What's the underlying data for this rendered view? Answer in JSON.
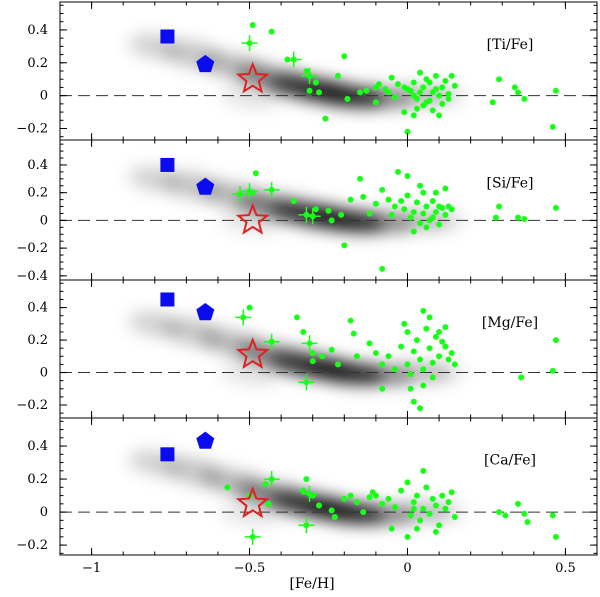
{
  "chart_data": {
    "type": "scatter",
    "xlabel": "[Fe/H]",
    "xlim": [
      -1.1,
      0.6
    ],
    "x_ticks": [
      -1,
      -0.5,
      0,
      0.5
    ],
    "x_tick_labels": [
      "−1",
      "−0.5",
      "0",
      "0.5"
    ],
    "colors": {
      "green": "#19ff19",
      "blue": "#0b0bf0",
      "star_edge": "#dd2222",
      "frame": "#000000"
    },
    "panels": [
      {
        "label": "[Ti/Fe]",
        "ylim": [
          -0.27,
          0.57
        ],
        "y_ticks": [
          -0.2,
          0,
          0.2,
          0.4
        ],
        "y_tick_labels": [
          "−0.2",
          "0",
          "0.2",
          "0.4"
        ],
        "square": {
          "x": -0.76,
          "y": 0.36
        },
        "pentagon": {
          "x": -0.64,
          "y": 0.19
        },
        "star": {
          "x": -0.49,
          "y": 0.1
        },
        "error_points": [
          [
            -0.5,
            0.32
          ],
          [
            -0.36,
            0.22
          ],
          [
            -0.31,
            0.12
          ]
        ],
        "points": [
          [
            -0.49,
            0.43
          ],
          [
            -0.43,
            0.39
          ],
          [
            -0.38,
            0.22
          ],
          [
            -0.32,
            0.15
          ],
          [
            -0.29,
            0.08
          ],
          [
            -0.31,
            0.03
          ],
          [
            -0.28,
            0.02
          ],
          [
            -0.2,
            0.24
          ],
          [
            -0.22,
            0.12
          ],
          [
            -0.19,
            -0.02
          ],
          [
            -0.1,
            0.05
          ],
          [
            -0.09,
            0.07
          ],
          [
            -0.07,
            0.04
          ],
          [
            -0.05,
            0.11
          ],
          [
            -0.03,
            0.07
          ],
          [
            -0.01,
            0.05
          ],
          [
            0.01,
            0.03
          ],
          [
            0.02,
            0.0
          ],
          [
            0.03,
            -0.02
          ],
          [
            0.04,
            0.02
          ],
          [
            0.05,
            0.05
          ],
          [
            0.06,
            -0.04
          ],
          [
            0.07,
            0.08
          ],
          [
            0.08,
            0.02
          ],
          [
            0.09,
            0.12
          ],
          [
            0.1,
            0.0
          ],
          [
            0.11,
            0.05
          ],
          [
            0.12,
            0.09
          ],
          [
            0.13,
            0.01
          ],
          [
            0.14,
            0.12
          ],
          [
            0.15,
            0.06
          ],
          [
            -0.01,
            -0.1
          ],
          [
            0.0,
            -0.22
          ],
          [
            0.02,
            -0.12
          ],
          [
            0.03,
            -0.08
          ],
          [
            0.05,
            -0.06
          ],
          [
            0.07,
            -0.03
          ],
          [
            0.1,
            -0.12
          ],
          [
            0.06,
            0.1
          ],
          [
            0.04,
            0.14
          ],
          [
            -0.04,
            -0.01
          ],
          [
            -0.1,
            -0.04
          ],
          [
            -0.15,
            0.02
          ],
          [
            -0.26,
            -0.14
          ],
          [
            -0.13,
            0.03
          ],
          [
            0.29,
            0.1
          ],
          [
            0.27,
            -0.04
          ],
          [
            0.35,
            0.02
          ],
          [
            0.37,
            -0.02
          ],
          [
            0.34,
            0.05
          ],
          [
            0.47,
            0.03
          ],
          [
            0.46,
            -0.19
          ],
          [
            0.09,
            0.04
          ],
          [
            0.11,
            -0.05
          ],
          [
            0.0,
            0.04
          ],
          [
            0.02,
            0.08
          ],
          [
            -0.06,
            0.02
          ],
          [
            0.08,
            -0.09
          ],
          [
            0.13,
            -0.02
          ]
        ]
      },
      {
        "label": "[Si/Fe]",
        "ylim": [
          -0.43,
          0.58
        ],
        "y_ticks": [
          -0.4,
          -0.2,
          0,
          0.2,
          0.4
        ],
        "y_tick_labels": [
          "−0.4",
          "−0.2",
          "0",
          "0.2",
          "0.4"
        ],
        "square": {
          "x": -0.76,
          "y": 0.4
        },
        "pentagon": {
          "x": -0.64,
          "y": 0.24
        },
        "star": {
          "x": -0.49,
          "y": 0.0
        },
        "error_points": [
          [
            -0.53,
            0.19
          ],
          [
            -0.5,
            0.21
          ],
          [
            -0.43,
            0.22
          ],
          [
            -0.32,
            0.04
          ],
          [
            -0.3,
            0.03
          ]
        ],
        "points": [
          [
            -0.48,
            0.34
          ],
          [
            -0.49,
            0.2
          ],
          [
            -0.36,
            0.14
          ],
          [
            -0.29,
            0.08
          ],
          [
            -0.25,
            0.07
          ],
          [
            -0.21,
            0.04
          ],
          [
            -0.2,
            -0.18
          ],
          [
            -0.18,
            0.15
          ],
          [
            -0.15,
            0.3
          ],
          [
            -0.14,
            0.17
          ],
          [
            -0.12,
            0.05
          ],
          [
            -0.1,
            0.12
          ],
          [
            -0.08,
            0.22
          ],
          [
            -0.06,
            0.15
          ],
          [
            -0.04,
            0.1
          ],
          [
            -0.03,
            0.35
          ],
          [
            -0.01,
            0.08
          ],
          [
            0.0,
            0.18
          ],
          [
            0.01,
            0.02
          ],
          [
            0.02,
            0.06
          ],
          [
            0.03,
            0.13
          ],
          [
            0.04,
            -0.02
          ],
          [
            0.05,
            0.05
          ],
          [
            0.06,
            0.1
          ],
          [
            0.07,
            0.0
          ],
          [
            0.08,
            0.14
          ],
          [
            0.09,
            0.06
          ],
          [
            0.1,
            -0.03
          ],
          [
            0.11,
            0.09
          ],
          [
            0.12,
            0.04
          ],
          [
            0.13,
            0.1
          ],
          [
            0.14,
            0.08
          ],
          [
            0.0,
            0.32
          ],
          [
            0.04,
            0.25
          ],
          [
            0.02,
            -0.08
          ],
          [
            -0.05,
            0.04
          ],
          [
            -0.08,
            -0.35
          ],
          [
            -0.24,
            0.0
          ],
          [
            0.09,
            0.2
          ],
          [
            0.12,
            0.23
          ],
          [
            0.29,
            0.1
          ],
          [
            0.28,
            0.02
          ],
          [
            0.35,
            0.02
          ],
          [
            0.37,
            0.01
          ],
          [
            0.47,
            0.09
          ],
          [
            0.06,
            -0.05
          ],
          [
            0.1,
            0.1
          ],
          [
            -0.02,
            0.14
          ],
          [
            0.05,
            0.2
          ],
          [
            0.08,
            0.02
          ]
        ]
      },
      {
        "label": "[Mg/Fe]",
        "ylim": [
          -0.28,
          0.57
        ],
        "y_ticks": [
          -0.2,
          0,
          0.2,
          0.4
        ],
        "y_tick_labels": [
          "−0.2",
          "0",
          "0.2",
          "0.4"
        ],
        "square": {
          "x": -0.76,
          "y": 0.45
        },
        "pentagon": {
          "x": -0.64,
          "y": 0.37
        },
        "star": {
          "x": -0.49,
          "y": 0.11
        },
        "error_points": [
          [
            -0.52,
            0.34
          ],
          [
            -0.43,
            0.19
          ],
          [
            -0.31,
            0.18
          ],
          [
            -0.32,
            -0.06
          ]
        ],
        "points": [
          [
            -0.5,
            0.4
          ],
          [
            -0.35,
            0.34
          ],
          [
            -0.33,
            0.25
          ],
          [
            -0.3,
            0.12
          ],
          [
            -0.27,
            0.1
          ],
          [
            -0.24,
            0.14
          ],
          [
            -0.22,
            0.05
          ],
          [
            -0.18,
            0.32
          ],
          [
            -0.17,
            0.24
          ],
          [
            -0.16,
            0.1
          ],
          [
            -0.12,
            0.18
          ],
          [
            -0.1,
            0.12
          ],
          [
            -0.08,
            0.05
          ],
          [
            -0.06,
            0.1
          ],
          [
            -0.04,
            0.02
          ],
          [
            -0.02,
            0.16
          ],
          [
            -0.01,
            0.3
          ],
          [
            0.0,
            0.05
          ],
          [
            0.01,
            -0.01
          ],
          [
            0.02,
            0.13
          ],
          [
            0.03,
            0.2
          ],
          [
            0.04,
            0.08
          ],
          [
            0.05,
            0.02
          ],
          [
            0.06,
            0.27
          ],
          [
            0.07,
            0.15
          ],
          [
            0.08,
            0.06
          ],
          [
            0.09,
            0.22
          ],
          [
            0.1,
            0.1
          ],
          [
            0.11,
            0.19
          ],
          [
            0.12,
            0.16
          ],
          [
            0.13,
            0.08
          ],
          [
            0.14,
            0.12
          ],
          [
            0.15,
            0.05
          ],
          [
            0.01,
            -0.1
          ],
          [
            0.02,
            -0.18
          ],
          [
            0.04,
            -0.22
          ],
          [
            0.05,
            -0.08
          ],
          [
            -0.08,
            -0.1
          ],
          [
            0.07,
            0.34
          ],
          [
            0.05,
            0.38
          ],
          [
            0.0,
            0.25
          ],
          [
            0.1,
            0.25
          ],
          [
            0.36,
            -0.03
          ],
          [
            0.46,
            0.01
          ],
          [
            0.47,
            0.2
          ],
          [
            -0.3,
            0.07
          ],
          [
            0.08,
            -0.03
          ],
          [
            0.12,
            0.28
          ]
        ]
      },
      {
        "label": "[Ca/Fe]",
        "ylim": [
          -0.26,
          0.57
        ],
        "y_ticks": [
          -0.2,
          0,
          0.2,
          0.4
        ],
        "y_tick_labels": [
          "−0.2",
          "0",
          "0.2",
          "0.4"
        ],
        "square": {
          "x": -0.76,
          "y": 0.35
        },
        "pentagon": {
          "x": -0.64,
          "y": 0.43
        },
        "star": {
          "x": -0.49,
          "y": 0.05
        },
        "error_points": [
          [
            -0.43,
            0.2
          ],
          [
            -0.49,
            -0.15
          ],
          [
            -0.32,
            -0.08
          ],
          [
            -0.31,
            0.11
          ]
        ],
        "points": [
          [
            -0.57,
            0.15
          ],
          [
            -0.5,
            0.1
          ],
          [
            -0.45,
            0.17
          ],
          [
            -0.44,
            0.05
          ],
          [
            -0.33,
            0.13
          ],
          [
            -0.3,
            0.1
          ],
          [
            -0.28,
            0.04
          ],
          [
            -0.32,
            0.2
          ],
          [
            -0.24,
            0.01
          ],
          [
            -0.2,
            0.08
          ],
          [
            -0.18,
            0.1
          ],
          [
            -0.16,
            0.06
          ],
          [
            -0.14,
            0.0
          ],
          [
            -0.11,
            0.12
          ],
          [
            -0.1,
            0.1
          ],
          [
            -0.08,
            0.05
          ],
          [
            -0.06,
            0.08
          ],
          [
            -0.04,
            0.03
          ],
          [
            -0.02,
            0.13
          ],
          [
            0.0,
            0.18
          ],
          [
            0.01,
            -0.02
          ],
          [
            0.02,
            0.06
          ],
          [
            0.03,
            0.1
          ],
          [
            0.04,
            -0.05
          ],
          [
            0.05,
            0.02
          ],
          [
            0.06,
            0.15
          ],
          [
            0.07,
            -0.01
          ],
          [
            0.08,
            0.08
          ],
          [
            0.09,
            0.04
          ],
          [
            0.1,
            -0.08
          ],
          [
            0.11,
            0.1
          ],
          [
            0.12,
            0.02
          ],
          [
            0.13,
            0.06
          ],
          [
            0.14,
            0.12
          ],
          [
            0.15,
            -0.03
          ],
          [
            -0.05,
            -0.1
          ],
          [
            0.03,
            -0.1
          ],
          [
            0.0,
            -0.15
          ],
          [
            0.05,
            0.25
          ],
          [
            0.09,
            -0.12
          ],
          [
            0.29,
            0.0
          ],
          [
            0.31,
            -0.02
          ],
          [
            0.35,
            0.05
          ],
          [
            0.37,
            -0.01
          ],
          [
            0.38,
            -0.06
          ],
          [
            0.46,
            -0.02
          ],
          [
            0.47,
            -0.15
          ],
          [
            -0.23,
            -0.03
          ],
          [
            0.02,
            0.02
          ],
          [
            -0.12,
            0.09
          ]
        ]
      }
    ]
  }
}
